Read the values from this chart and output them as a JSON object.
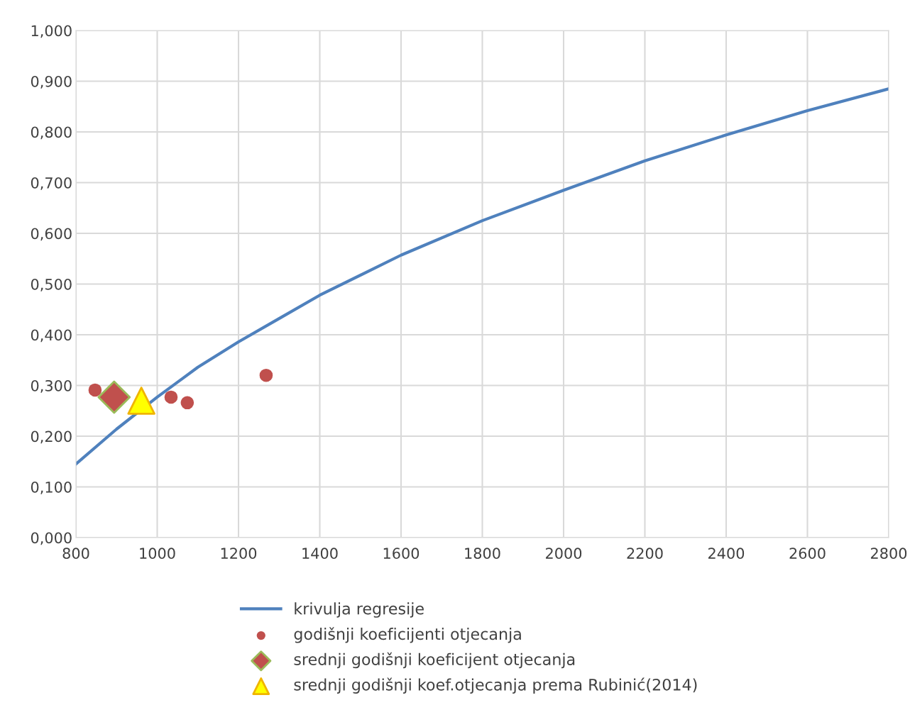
{
  "chart_data": {
    "type": "line",
    "xlim": [
      800,
      2800
    ],
    "xticks": [
      800,
      1000,
      1200,
      1400,
      1600,
      1800,
      2000,
      2200,
      2400,
      2600,
      2800
    ],
    "ylim": [
      0,
      1
    ],
    "yticks": [
      {
        "value": 0,
        "label": "0,000"
      },
      {
        "value": 0.1,
        "label": "0,100"
      },
      {
        "value": 0.2,
        "label": "0,200"
      },
      {
        "value": 0.3,
        "label": "0,300"
      },
      {
        "value": 0.4,
        "label": "0,400"
      },
      {
        "value": 0.5,
        "label": "0,500"
      },
      {
        "value": 0.6,
        "label": "0,600"
      },
      {
        "value": 0.7,
        "label": "0,700"
      },
      {
        "value": 0.8,
        "label": "0,800"
      },
      {
        "value": 0.9,
        "label": "0,900"
      },
      {
        "value": 1,
        "label": "1,000"
      }
    ],
    "grid": true,
    "legend": "bottom",
    "series": [
      {
        "name": "krivulja regresije",
        "color": "#4f81bd",
        "marker": "none",
        "line_style": "solid",
        "x": [
          800,
          900,
          1000,
          1100,
          1200,
          1300,
          1400,
          1600,
          1800,
          2000,
          2200,
          2400,
          2600,
          2800
        ],
        "values": [
          0.145,
          0.214,
          0.277,
          0.336,
          0.386,
          0.432,
          0.478,
          0.557,
          0.625,
          0.685,
          0.743,
          0.794,
          0.842,
          0.885
        ]
      },
      {
        "name": "godišnji koeficijenti otjecanja",
        "type": "scatter",
        "color": "#c0504d",
        "marker": "circle",
        "x": [
          847,
          1034,
          1074,
          1268
        ],
        "values": [
          0.291,
          0.277,
          0.266,
          0.32
        ]
      },
      {
        "name": "srednji godišnji koeficijent otjecanja",
        "type": "scatter",
        "color": "#c0504d",
        "marker": "diamond",
        "x": [
          894
        ],
        "values": [
          0.277
        ]
      },
      {
        "name": "srednji godišnji koef.otjecanja prema Rubinić(2014)",
        "type": "scatter",
        "color": "#ffff00",
        "marker": "triangle",
        "x": [
          961
        ],
        "values": [
          0.27
        ]
      }
    ]
  }
}
